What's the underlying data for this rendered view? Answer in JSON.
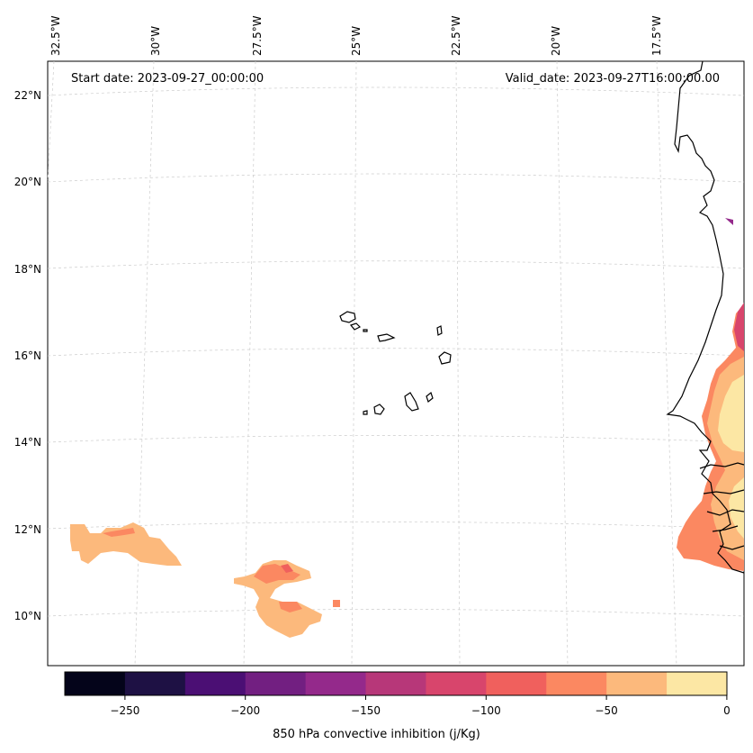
{
  "header": {
    "start_date": "Start date: 2023-09-27_00:00:00",
    "valid_date": "Valid_date: 2023-09-27T16:00:00.00"
  },
  "longitude_labels": [
    "32.5°W",
    "30°W",
    "27.5°W",
    "25°W",
    "22.5°W",
    "20°W",
    "17.5°W"
  ],
  "latitude_labels": [
    "22°N",
    "20°N",
    "18°N",
    "16°N",
    "14°N",
    "12°N",
    "10°N"
  ],
  "colorbar": {
    "label": "850 hPa convective inhibition (j/Kg)",
    "tick_labels": [
      "−250",
      "−200",
      "−150",
      "−100",
      "−50",
      "0"
    ],
    "colors": [
      "#04041a",
      "#1e1144",
      "#4b0f74",
      "#721f81",
      "#94298b",
      "#b73779",
      "#d8456c",
      "#f0605d",
      "#fb8861",
      "#fcb97c",
      "#fce7a4"
    ]
  },
  "palette": {
    "level_0_to_25": "#fce7a4",
    "level_25_to_50": "#fcb97c",
    "level_50_to_75": "#fb8861",
    "level_75_to_100": "#f0605d",
    "level_100_to_125": "#d8456c",
    "level_125_to_150": "#b73779",
    "level_150_to_175": "#94298b"
  }
}
